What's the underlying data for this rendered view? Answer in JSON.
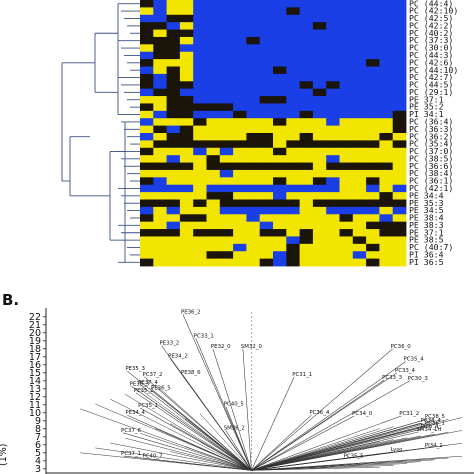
{
  "panel_b_letter": "B.",
  "colors": {
    "high": "#f2e600",
    "mid": "#1a1508",
    "low": "#1a3fe6",
    "line": "#3d4f86"
  },
  "chart_data": [
    {
      "type": "heatmap",
      "panel": "A",
      "row_labels": [
        "PC (44:4)",
        "PC (42:10)",
        "PC (42:5)",
        "PC (42:2)",
        "PC (40:2)",
        "PC (37:3)",
        "PC (30:0)",
        "PC (44:3)",
        "PC (42:6)",
        "PC (44:10)",
        "PC (42:7)",
        "PC (44:5)",
        "PC (29:1)",
        "PE 37:1",
        "PE 35:2",
        "PI 34:1",
        "PC (36:4)",
        "PC (36:3)",
        "PC (36:2)",
        "PC (35:4)",
        "PC (37:0)",
        "PC (38:5)",
        "PC (36:6)",
        "PC (38:4)",
        "PC (36:1)",
        "PC (42:1)",
        "PE 34:4",
        "PE 35:3",
        "PE 34:5",
        "PE 38:4",
        "PE 38:3",
        "PE 37:1",
        "PE 38:5",
        "PC (40:7)",
        "PI 36:4",
        "PI 36:5"
      ],
      "column_count": 20,
      "cluster_pattern": "Upper row block mostly blue (low) with mixed dark/yellow cells in the first columns; lower row block mostly yellow (high) with dark and blue bands"
    },
    {
      "type": "scatter",
      "panel": "B",
      "ylabel": "(1%)",
      "yticks": [
        3,
        4,
        5,
        6,
        7,
        8,
        9,
        10,
        11,
        12,
        13,
        14,
        15,
        16,
        17,
        18,
        19,
        20,
        21,
        22
      ],
      "ylim": [
        2.6,
        22.6
      ],
      "xlim": [
        0,
        100
      ],
      "origin": [
        48,
        2.8
      ],
      "points": [
        {
          "label": "PE36_2",
          "x": 32,
          "y": 22.3
        },
        {
          "label": "PC33_1",
          "x": 35,
          "y": 19.3
        },
        {
          "label": "PE33_2",
          "x": 27,
          "y": 18.4
        },
        {
          "label": "PE32_0",
          "x": 39,
          "y": 18.0
        },
        {
          "label": "SM32_0",
          "x": 46,
          "y": 18.0
        },
        {
          "label": "PE34_2",
          "x": 29,
          "y": 16.8
        },
        {
          "label": "PE35_3",
          "x": 19,
          "y": 15.2
        },
        {
          "label": "PC37_2",
          "x": 23,
          "y": 14.5
        },
        {
          "label": "PE38_6",
          "x": 32,
          "y": 14.7
        },
        {
          "label": "PE36_3",
          "x": 20,
          "y": 13.3
        },
        {
          "label": "PE37_4",
          "x": 22,
          "y": 13.5
        },
        {
          "label": "PE36_5",
          "x": 25,
          "y": 12.8
        },
        {
          "label": "PE35_2",
          "x": 21,
          "y": 12.5
        },
        {
          "label": "PC35_1",
          "x": 22,
          "y": 10.6
        },
        {
          "label": "PE34_4",
          "x": 19,
          "y": 9.7
        },
        {
          "label": "PC40_5",
          "x": 42,
          "y": 10.8
        },
        {
          "label": "PC37_6",
          "x": 18,
          "y": 7.5
        },
        {
          "label": "SM36_2",
          "x": 42,
          "y": 7.8
        },
        {
          "label": "PC37_1",
          "x": 18,
          "y": 4.6
        },
        {
          "label": "PC40_7",
          "x": 23,
          "y": 4.3
        },
        {
          "label": "PC36_0",
          "x": 81,
          "y": 18.0
        },
        {
          "label": "PC35_4",
          "x": 84,
          "y": 16.4
        },
        {
          "label": "PC33_4",
          "x": 82,
          "y": 15.0
        },
        {
          "label": "PC31_1",
          "x": 58,
          "y": 14.5
        },
        {
          "label": "PC33_3",
          "x": 79,
          "y": 14.1
        },
        {
          "label": "PC30_3",
          "x": 85,
          "y": 14.0
        },
        {
          "label": "PC36_4",
          "x": 62,
          "y": 9.7
        },
        {
          "label": "PC34_0",
          "x": 72,
          "y": 9.6
        },
        {
          "label": "PC31_2",
          "x": 83,
          "y": 9.6
        },
        {
          "label": "PC38_5",
          "x": 89,
          "y": 9.2
        },
        {
          "label": "PC38_4",
          "x": 88,
          "y": 8.7
        },
        {
          "label": "PC36_1",
          "x": 89,
          "y": 8.4
        },
        {
          "label": "PI36_4",
          "x": 88,
          "y": 8.0
        },
        {
          "label": "SM34_1H",
          "x": 87,
          "y": 7.6
        },
        {
          "label": "Lyso",
          "x": 81,
          "y": 5.1
        },
        {
          "label": "PC35_5",
          "x": 70,
          "y": 4.3
        },
        {
          "label": "PI34_1",
          "x": 89,
          "y": 5.6
        }
      ]
    }
  ]
}
